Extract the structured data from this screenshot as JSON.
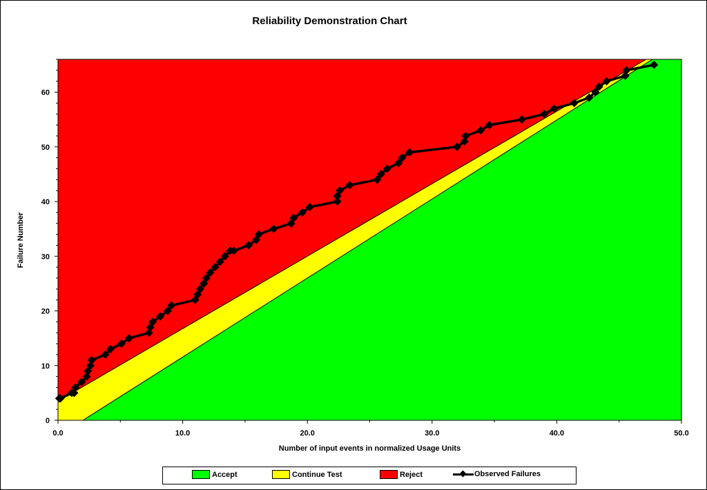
{
  "chart_data": {
    "type": "line",
    "title": "Reliability Demonstration Chart",
    "xlabel": "Number of input events in normalized Usage Units",
    "ylabel": "Failure Number",
    "xlim": [
      0,
      50
    ],
    "ylim": [
      0,
      66
    ],
    "x_ticks": [
      "0.0",
      "10.0",
      "20.0",
      "30.0",
      "40.0",
      "50.0"
    ],
    "y_ticks": [
      "0",
      "10",
      "20",
      "30",
      "40",
      "50",
      "60"
    ],
    "grid": false,
    "legend_position": "bottom",
    "regions": [
      {
        "name": "Accept",
        "color": "#00ff00",
        "boundary": {
          "x_at_y0": 2.0,
          "slope": 1.445
        }
      },
      {
        "name": "Continue Test",
        "color": "#ffff00"
      },
      {
        "name": "Reject",
        "color": "#ff0000",
        "boundary": {
          "y_at_x0": 3.5,
          "slope": 1.325
        }
      }
    ],
    "series": [
      {
        "name": "Observed Failures",
        "color": "#000000",
        "x": [
          0.1,
          0.2,
          1.1,
          1.3,
          1.4,
          1.9,
          2.3,
          2.4,
          2.6,
          2.7,
          3.8,
          4.2,
          5.1,
          5.7,
          7.3,
          7.4,
          7.6,
          8.2,
          8.8,
          9.1,
          11.0,
          11.2,
          11.4,
          11.7,
          11.9,
          12.2,
          12.6,
          13.0,
          13.4,
          13.8,
          14.1,
          15.3,
          15.9,
          16.1,
          17.3,
          18.7,
          18.9,
          19.6,
          20.2,
          22.4,
          22.4,
          22.6,
          23.4,
          25.6,
          25.9,
          26.4,
          27.3,
          27.6,
          28.2,
          32.0,
          32.6,
          32.7,
          33.9,
          34.6,
          37.2,
          39.0,
          39.8,
          41.4,
          42.6,
          43.1,
          43.4,
          44.0,
          45.5,
          45.6,
          47.8
        ],
        "y": [
          4,
          4,
          5,
          5,
          6,
          7,
          8,
          9,
          10,
          11,
          12,
          13,
          14,
          15,
          16,
          17,
          18,
          19,
          20,
          21,
          22,
          23,
          24,
          25,
          26,
          27,
          28,
          29,
          30,
          31,
          31,
          32,
          33,
          34,
          35,
          36,
          37,
          38,
          39,
          40,
          41,
          42,
          43,
          44,
          45,
          46,
          47,
          48,
          49,
          50,
          51,
          52,
          53,
          54,
          55,
          56,
          57,
          58,
          59,
          60,
          61,
          62,
          63,
          64,
          65
        ]
      }
    ]
  },
  "legend": {
    "accept_label": "Accept",
    "continue_label": "Continue Test",
    "reject_label": "Reject",
    "observed_label": "Observed Failures"
  }
}
